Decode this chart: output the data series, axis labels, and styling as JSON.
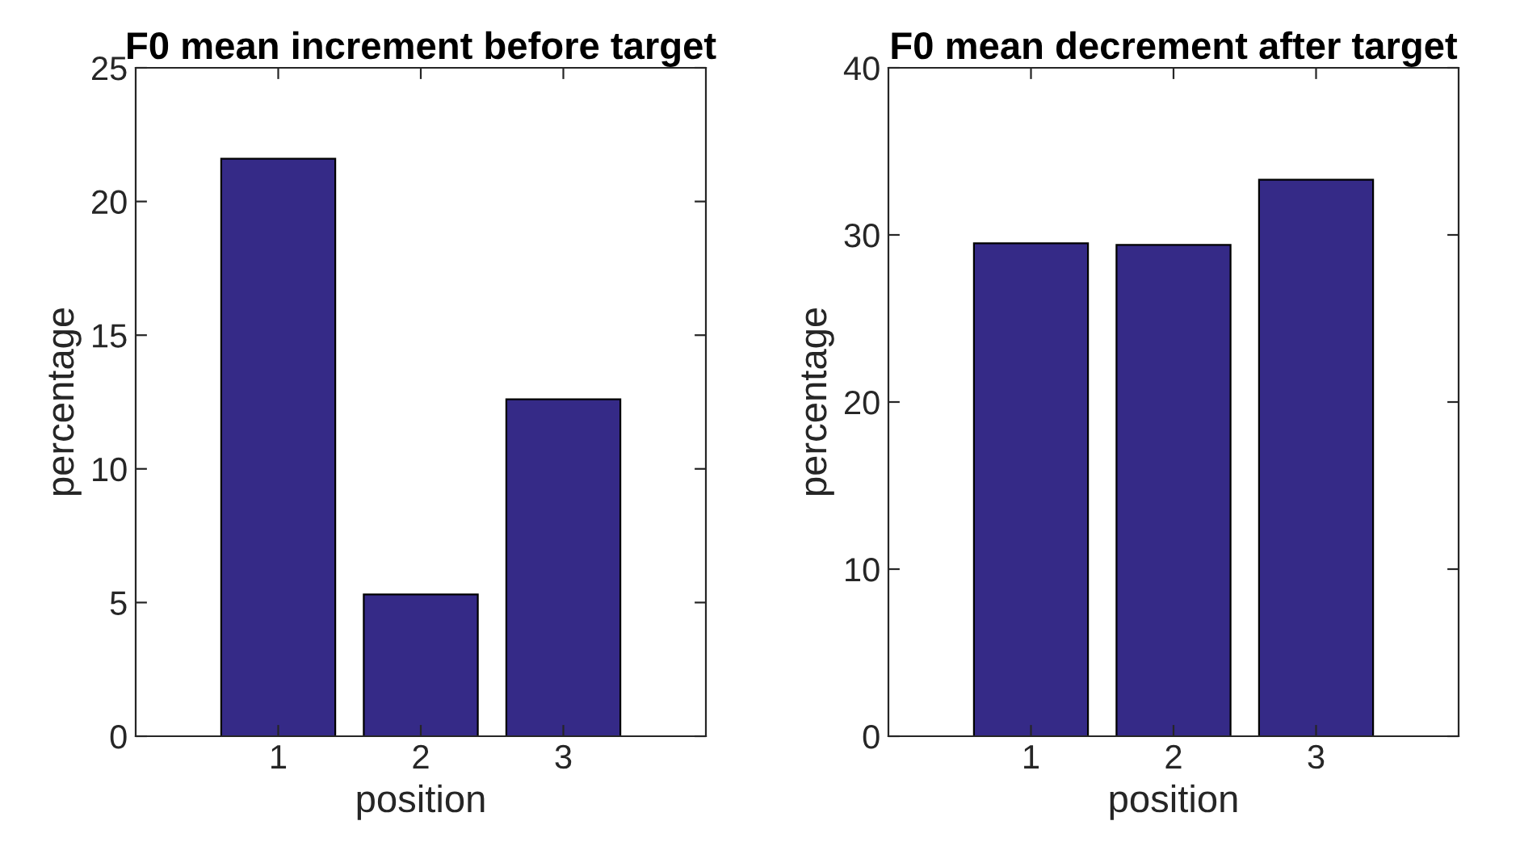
{
  "chart_data": [
    {
      "type": "bar",
      "title": "F0 mean increment before target",
      "xlabel": "position",
      "ylabel": "percentage",
      "x": [
        1,
        2,
        3
      ],
      "xlim": [
        0,
        4
      ],
      "xticks": [
        1,
        2,
        3
      ],
      "ylim": [
        0,
        25
      ],
      "yticks": [
        0,
        5,
        10,
        15,
        20,
        25
      ],
      "color": "#352a87",
      "values": [
        21.6,
        5.3,
        12.6
      ]
    },
    {
      "type": "bar",
      "title": "F0 mean decrement after target",
      "xlabel": "position",
      "ylabel": "percentage",
      "x": [
        1,
        2,
        3
      ],
      "xlim": [
        0,
        4
      ],
      "xticks": [
        1,
        2,
        3
      ],
      "ylim": [
        0,
        40
      ],
      "yticks": [
        0,
        10,
        20,
        30,
        40
      ],
      "color": "#352a87",
      "values": [
        29.5,
        29.4,
        33.3
      ]
    }
  ]
}
